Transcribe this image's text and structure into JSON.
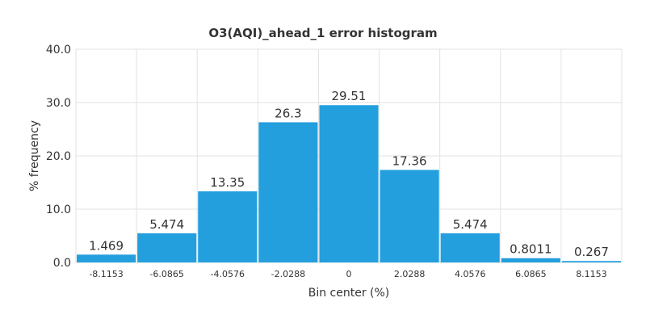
{
  "chart_data": {
    "type": "bar",
    "title": "O3(AQI)_ahead_1 error histogram",
    "xlabel": "Bin center (%)",
    "ylabel": "% frequency",
    "categories": [
      "-8.1153",
      "-6.0865",
      "-4.0576",
      "-2.0288",
      "0",
      "2.0288",
      "4.0576",
      "6.0865",
      "8.1153"
    ],
    "values": [
      1.469,
      5.474,
      13.35,
      26.3,
      29.51,
      17.36,
      5.474,
      0.8011,
      0.267
    ],
    "data_labels": [
      "1.469",
      "5.474",
      "13.35",
      "26.3",
      "29.51",
      "17.36",
      "5.474",
      "0.8011",
      "0.267"
    ],
    "ylim": [
      0,
      40
    ],
    "yticks": [
      "0.0",
      "10.0",
      "20.0",
      "30.0",
      "40.0"
    ],
    "grid": true,
    "legend": "none",
    "bar_color": "#239fde"
  }
}
